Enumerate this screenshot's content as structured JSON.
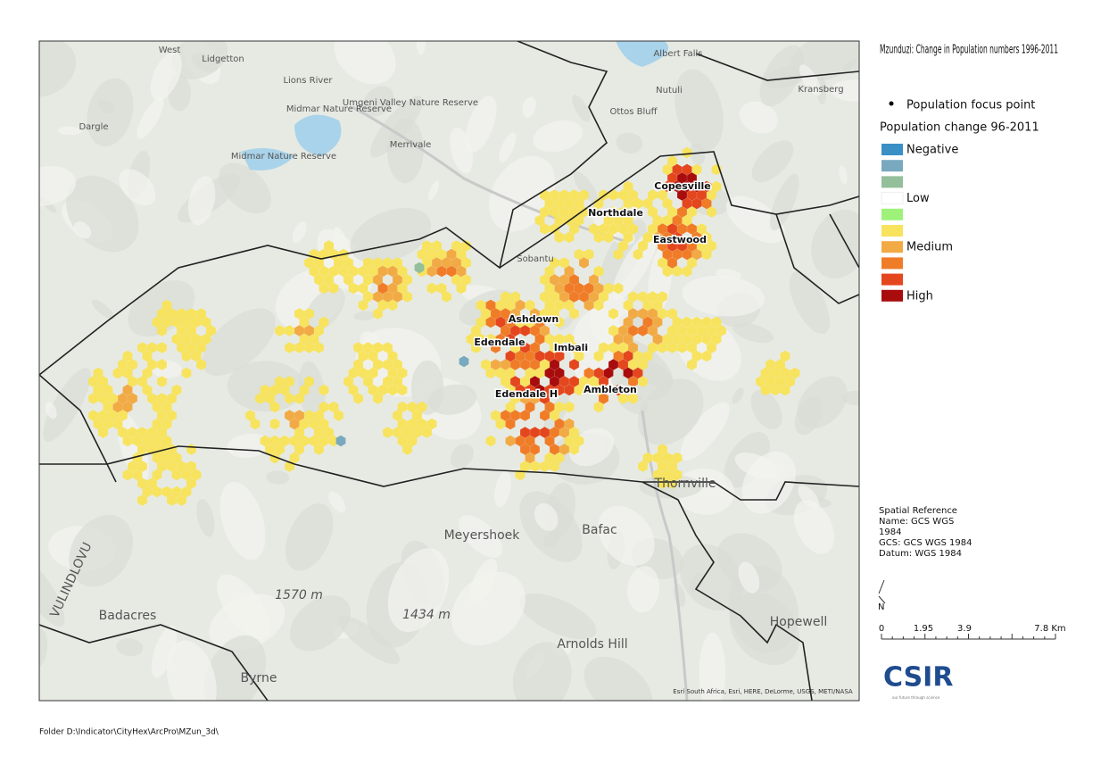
{
  "title": "Mzunduzi: Change in Population numbers 1996-2011",
  "legend": {
    "point_label": "Population focus point",
    "heading": "Population change 96-2011",
    "items": [
      {
        "label": "Negative",
        "color": "#3a8fc4"
      },
      {
        "color": "#79a9be"
      },
      {
        "color": "#93bf9a"
      },
      {
        "label": "Low",
        "color": "#ffffff"
      },
      {
        "color": "#9ef27a"
      },
      {
        "color": "#f7e35e"
      },
      {
        "label": "Medium",
        "color": "#f2aa45"
      },
      {
        "color": "#f07c28"
      },
      {
        "color": "#e4461e"
      },
      {
        "label": "High",
        "color": "#a80c0c"
      }
    ]
  },
  "map_labels": [
    "West",
    "Lidgetton",
    "Lions River",
    "Midmar Nature Reserve",
    "Umgeni Valley Nature Reserve",
    "Dargle",
    "Merrivale",
    "Midmar Nature Reserve",
    "Albert Falls",
    "Nutuli",
    "Ottos Bluff",
    "Kransberg",
    "Copesville",
    "Northdale",
    "Eastwood",
    "Ashdown",
    "Edendale",
    "Imbali",
    "Edendale H",
    "Ambleton",
    "Thornville",
    "Meyershoek",
    "Bafac",
    "1570 m",
    "1434 m",
    "Badacres",
    "Arnolds Hill",
    "Byrne",
    "Hopewell",
    "Sobantu",
    "VULINDLOVU",
    "Esri South Africa, Esri, HERE, DeLorme, USGS, METI/NASA"
  ],
  "spatial_reference": [
    "Spatial Reference",
    "Name: GCS WGS",
    "1984",
    "GCS: GCS WGS 1984",
    "Datum: WGS 1984"
  ],
  "north": "N",
  "scale_labels": [
    "0",
    "1.95",
    "3.9",
    "7.8 Km"
  ],
  "logo": "CSIR",
  "logo_tagline": "our future through science",
  "footer": "Folder D:\\Indicator\\CityHex\\ArcPro\\MZun_3d\\"
}
